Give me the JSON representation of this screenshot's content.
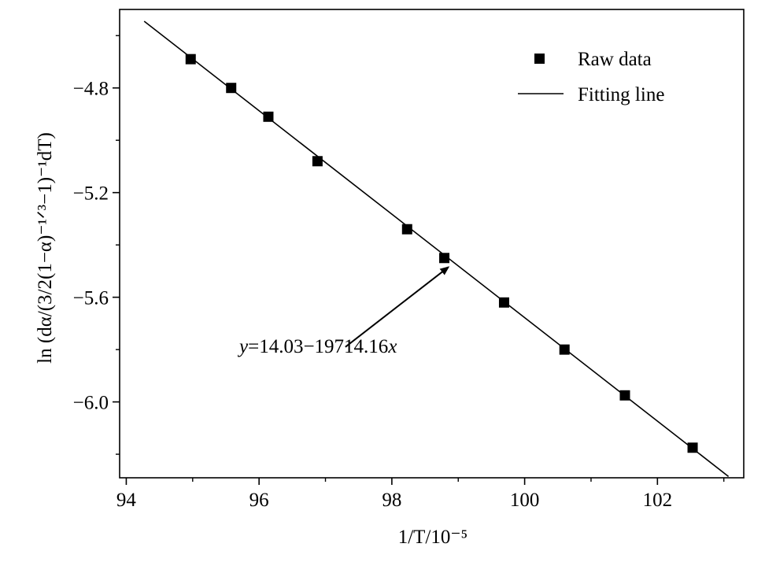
{
  "chart_data": {
    "type": "scatter",
    "xlabel": "1/T/10⁻⁵",
    "ylabel": "ln (dα/(3/2(1−α)⁻¹ᐟ³−1)⁻¹dT)",
    "xlim": [
      93.9,
      103.3
    ],
    "ylim": [
      -6.29,
      -4.5
    ],
    "x_ticks": [
      94,
      96,
      98,
      100,
      102
    ],
    "x_tick_labels": [
      "94",
      "96",
      "98",
      "100",
      "102"
    ],
    "y_ticks": [
      -4.8,
      -5.2,
      -5.6,
      -6.0
    ],
    "y_tick_labels": [
      "−4.8",
      "−5.2",
      "−5.6",
      "−6.0"
    ],
    "grid": false,
    "legend_position": "top-right",
    "series": [
      {
        "name": "Raw data",
        "kind": "markers",
        "marker": "square",
        "color": "#000000",
        "x": [
          94.97,
          95.58,
          96.14,
          96.88,
          98.23,
          98.79,
          99.69,
          100.6,
          101.51,
          102.53
        ],
        "y": [
          -4.69,
          -4.8,
          -4.91,
          -5.08,
          -5.34,
          -5.45,
          -5.62,
          -5.8,
          -5.975,
          -6.175
        ]
      },
      {
        "name": "Fitting line",
        "kind": "line",
        "color": "#000000",
        "x": [
          94.27,
          103.07
        ],
        "y": [
          -4.545,
          -6.285
        ]
      }
    ],
    "annotation": {
      "text_y": "y",
      "text_mid": "=14.03−19714.16",
      "text_x": "x",
      "arrow_from": [
        97.3,
        -5.79
      ],
      "arrow_to": [
        98.85,
        -5.485
      ]
    }
  }
}
